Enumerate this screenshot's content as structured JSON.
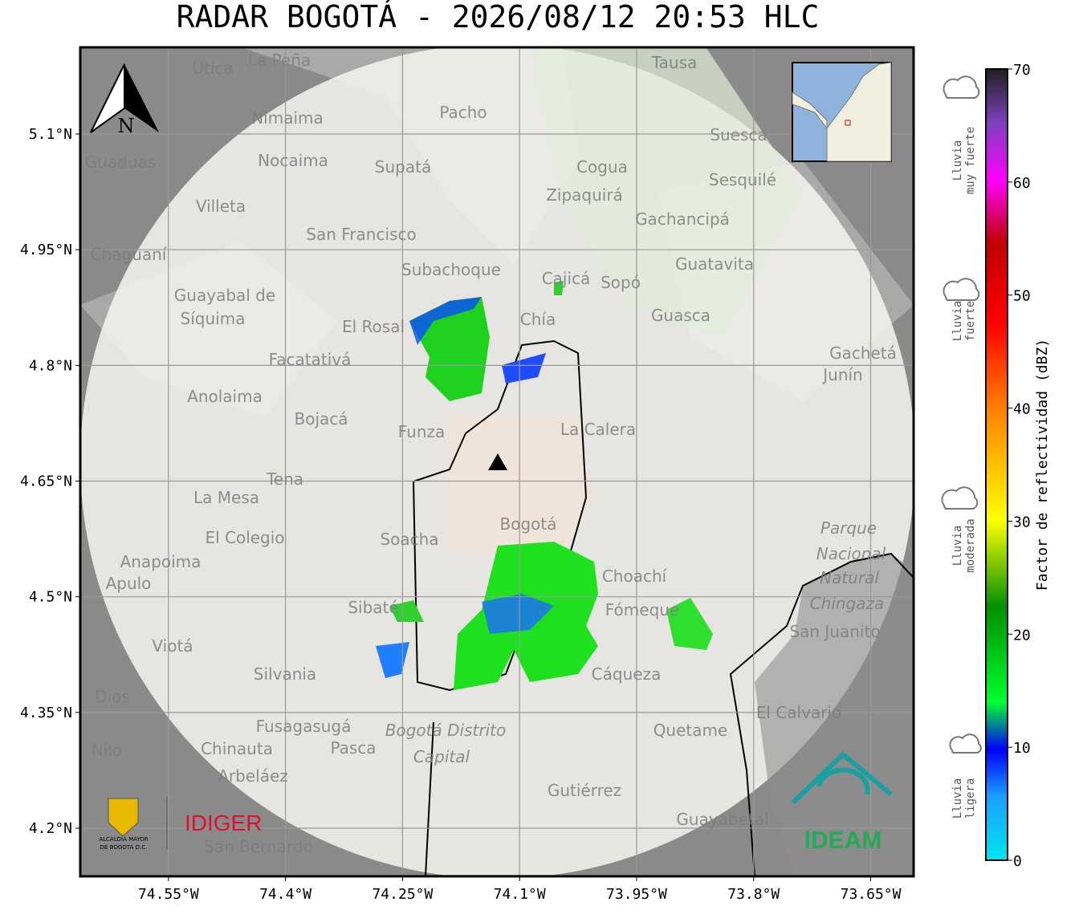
{
  "title": "RADAR BOGOTÁ - 2026/08/12 20:53 HLC",
  "map": {
    "xlim": [
      -74.663,
      -73.595
    ],
    "ylim": [
      4.1376,
      5.2124
    ],
    "xticks": [
      {
        "value": -74.55,
        "label": "74.55°W"
      },
      {
        "value": -74.4,
        "label": "74.4°W"
      },
      {
        "value": -74.25,
        "label": "74.25°W"
      },
      {
        "value": -74.1,
        "label": "74.1°W"
      },
      {
        "value": -73.95,
        "label": "73.95°W"
      },
      {
        "value": -73.8,
        "label": "73.8°W"
      },
      {
        "value": -73.65,
        "label": "73.65°W"
      }
    ],
    "yticks": [
      {
        "value": 4.2,
        "label": "4.2°N"
      },
      {
        "value": 4.35,
        "label": "4.35°N"
      },
      {
        "value": 4.5,
        "label": "4.5°N"
      },
      {
        "value": 4.65,
        "label": "4.65°N"
      },
      {
        "value": 4.8,
        "label": "4.8°N"
      },
      {
        "value": 4.95,
        "label": "4.95°N"
      },
      {
        "value": 5.1,
        "label": "5.1°N"
      }
    ],
    "grid": true,
    "north": "N",
    "places": [
      "La Peña",
      "Útica",
      "Tausa",
      "Pacho",
      "Nimaima",
      "Nocaima",
      "Supatá",
      "Guaduas",
      "Cogua",
      "Suesca",
      "Sesquilé",
      "Zipaquirá",
      "Villeta",
      "Gachancipá",
      "San Francisco",
      "Chaguaní",
      "Guatavita",
      "Subachoque",
      "Cajicá",
      "Sopó",
      "Guayabal de",
      "Síquima",
      "Guasca",
      "El Rosal",
      "Chía",
      "Facatativá",
      "Gachetá",
      "Junín",
      "Anolaima",
      "Bojacá",
      "Funza",
      "La Calera",
      "Tena",
      "La Mesa",
      "Bogotá",
      "Soacha",
      "El Colegio",
      "Anapoima",
      "Apulo",
      "Choachí",
      "Sibaté",
      "Fómeque",
      "San Juanito",
      "Viotá",
      "Silvania",
      "Cáqueza",
      "Fusagasugá",
      "El Calvario",
      "Quetame",
      "Chinauta",
      "Pasca",
      "Nilo",
      "Arbeláez",
      "Gutiérrez",
      "Guayabetal",
      "San Bernardo",
      "Dios",
      "Parque",
      "Nacional",
      "Natural",
      "Chingaza",
      "Bogotá Distrito",
      "Capital"
    ]
  },
  "colorbar": {
    "label": "Factor de reflectividad (dBZ)",
    "lim": [
      0,
      70
    ],
    "ticks": [
      0,
      10,
      20,
      30,
      40,
      50,
      60,
      70
    ]
  },
  "legend": [
    [
      "Lluvia",
      "muy fuerte"
    ],
    [
      "Lluvia",
      "fuerte"
    ],
    [
      "Lluvia",
      "moderada"
    ],
    [
      "Lluvia",
      "ligera"
    ]
  ],
  "logos": {
    "alcaldia": [
      "ALCALDÍA MAYOR",
      "DE BOGOTÁ D.C."
    ],
    "idiger": "IDIGER",
    "ideam": "IDEAM"
  }
}
